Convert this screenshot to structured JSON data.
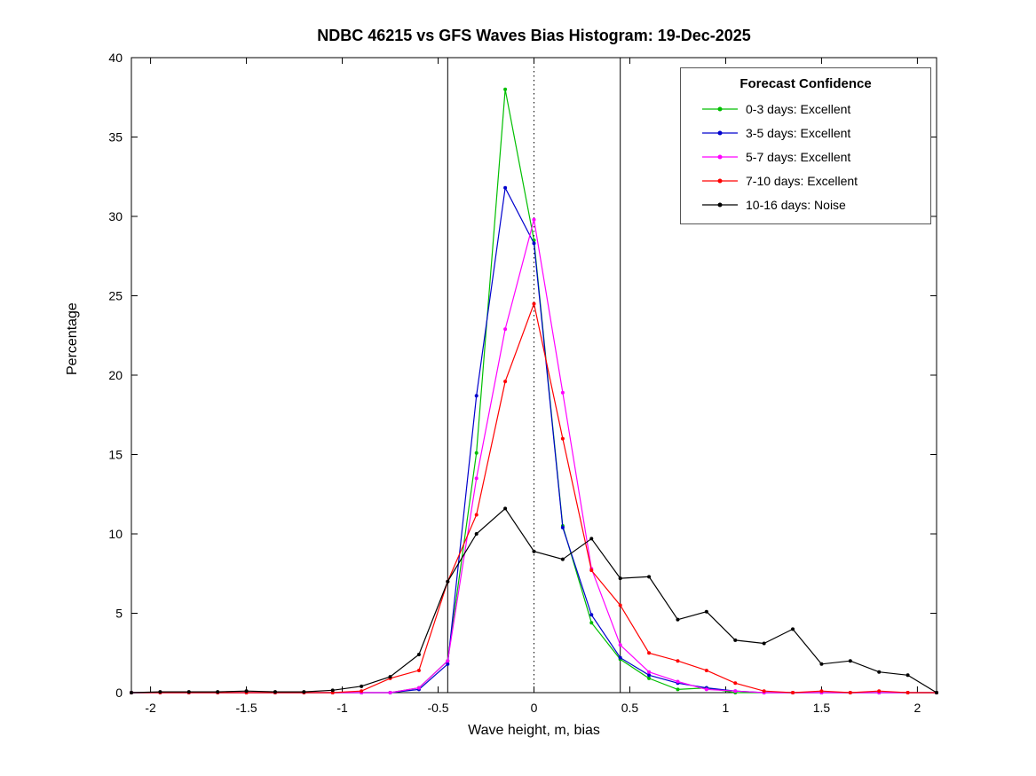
{
  "chart_data": {
    "type": "line",
    "title": "NDBC 46215 vs GFS Waves Bias Histogram: 19-Dec-2025",
    "xlabel": "Wave height, m, bias",
    "ylabel": "Percentage",
    "xlim": [
      -2.1,
      2.1
    ],
    "ylim": [
      0,
      40
    ],
    "xticks": [
      -2,
      -1.5,
      -1,
      -0.5,
      0,
      0.5,
      1,
      1.5,
      2
    ],
    "yticks": [
      0,
      5,
      10,
      15,
      20,
      25,
      30,
      35,
      40
    ],
    "grid": false,
    "legend": {
      "title": "Forecast Confidence",
      "position": "top-right"
    },
    "vlines": [
      {
        "x": -0.45,
        "style": "solid",
        "color": "#000000"
      },
      {
        "x": 0,
        "style": "dotted",
        "color": "#000000"
      },
      {
        "x": 0.45,
        "style": "solid",
        "color": "#000000"
      }
    ],
    "x": [
      -2.1,
      -1.95,
      -1.8,
      -1.65,
      -1.5,
      -1.35,
      -1.2,
      -1.05,
      -0.9,
      -0.75,
      -0.6,
      -0.45,
      -0.3,
      -0.15,
      0,
      0.15,
      0.3,
      0.45,
      0.6,
      0.75,
      0.9,
      1.05,
      1.2,
      1.35,
      1.5,
      1.65,
      1.8,
      1.95,
      2.1
    ],
    "series": [
      {
        "name": "0-3 days: Excellent",
        "color": "#00bf00",
        "values": [
          0,
          0,
          0,
          0,
          0,
          0,
          0,
          0,
          0,
          0,
          0.3,
          2.0,
          15.1,
          38,
          28.5,
          10.5,
          4.4,
          2.1,
          0.9,
          0.2,
          0.3,
          0,
          0,
          0,
          0,
          0,
          0,
          0,
          0
        ]
      },
      {
        "name": "3-5 days: Excellent",
        "color": "#0000cd",
        "values": [
          0,
          0,
          0,
          0,
          0,
          0,
          0,
          0,
          0,
          0,
          0.2,
          1.8,
          18.7,
          31.8,
          28.3,
          10.4,
          4.9,
          2.2,
          1.1,
          0.6,
          0.3,
          0.1,
          0,
          0,
          0,
          0,
          0,
          0,
          0
        ]
      },
      {
        "name": "5-7 days: Excellent",
        "color": "#ff00ff",
        "values": [
          0,
          0,
          0,
          0,
          0,
          0,
          0,
          0,
          0,
          0,
          0.3,
          2.0,
          13.5,
          22.9,
          29.8,
          18.9,
          7.8,
          3.0,
          1.3,
          0.7,
          0.2,
          0.1,
          0,
          0,
          0,
          0,
          0,
          0,
          0
        ]
      },
      {
        "name": "7-10 days: Excellent",
        "color": "#ff0000",
        "values": [
          0,
          0,
          0,
          0,
          0,
          0,
          0,
          0,
          0.1,
          0.9,
          1.4,
          7.0,
          11.2,
          19.6,
          24.5,
          16.0,
          7.7,
          5.5,
          2.5,
          2.0,
          1.4,
          0.6,
          0.1,
          0,
          0.1,
          0,
          0.1,
          0,
          0
        ]
      },
      {
        "name": "10-16 days: Noise",
        "color": "#000000",
        "values": [
          0,
          0.05,
          0.05,
          0.05,
          0.1,
          0.05,
          0.05,
          0.15,
          0.4,
          1.0,
          2.4,
          7.0,
          10.0,
          11.6,
          8.9,
          8.4,
          9.7,
          7.2,
          7.3,
          4.6,
          5.1,
          3.3,
          3.1,
          4.0,
          1.8,
          2.0,
          1.3,
          1.1,
          0
        ]
      }
    ]
  }
}
